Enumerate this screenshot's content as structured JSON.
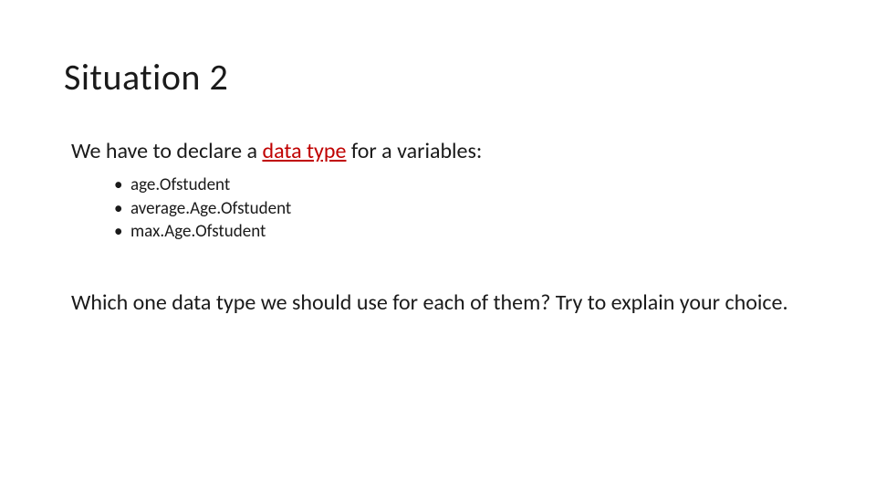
{
  "slide": {
    "title": "Situation 2",
    "intro": {
      "prefix": "We have to declare a ",
      "emphasis": "data type",
      "suffix": " for a variables:"
    },
    "bullets": [
      "age.Ofstudent",
      "average.Age.Ofstudent",
      "max.Age.Ofstudent"
    ],
    "question": "Which one data type we should use for each of them? Try to explain your choice."
  },
  "colors": {
    "background": "#ffffff",
    "text": "#1a1a1a",
    "emphasis": "#c00000"
  },
  "typography": {
    "title_fontsize": 40,
    "body_fontsize": 24,
    "bullet_fontsize": 19,
    "font_family": "Calibri"
  }
}
